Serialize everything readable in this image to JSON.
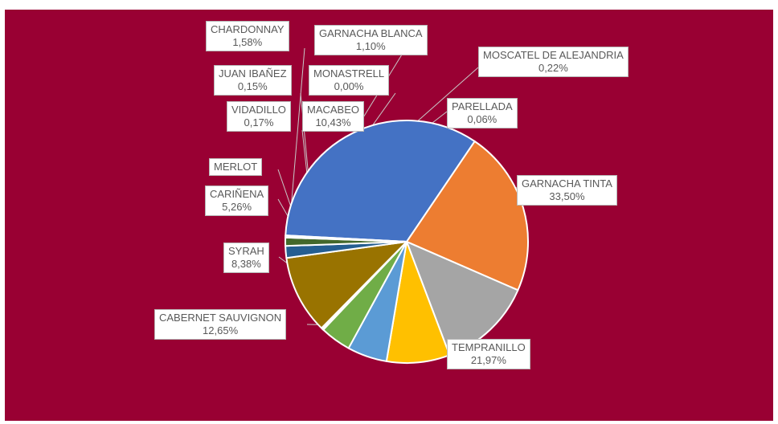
{
  "chart_data": {
    "type": "pie",
    "title": "",
    "slices": [
      {
        "name": "GARNACHA TINTA",
        "value": 33.5,
        "label": "33,50%",
        "color": "#4472c4"
      },
      {
        "name": "TEMPRANILLO",
        "value": 21.97,
        "label": "21,97%",
        "color": "#ed7d31"
      },
      {
        "name": "CABERNET SAUVIGNON",
        "value": 12.65,
        "label": "12,65%",
        "color": "#a5a5a5"
      },
      {
        "name": "SYRAH",
        "value": 8.38,
        "label": "8,38%",
        "color": "#ffc000"
      },
      {
        "name": "CARIÑENA",
        "value": 5.26,
        "label": "5,26%",
        "color": "#5b9bd5"
      },
      {
        "name": "MERLOT",
        "value": 4.1,
        "label": "",
        "color": "#70ad47"
      },
      {
        "name": "VIDADILLO",
        "value": 0.17,
        "label": "0,17%",
        "color": "#264478"
      },
      {
        "name": "JUAN IBAÑEZ",
        "value": 0.15,
        "label": "0,15%",
        "color": "#9e480e"
      },
      {
        "name": "MACABEO",
        "value": 10.43,
        "label": "10,43%",
        "color": "#997300"
      },
      {
        "name": "CHARDONNAY",
        "value": 1.58,
        "label": "1,58%",
        "color": "#255e91"
      },
      {
        "name": "MONASTRELL",
        "value": 0.0,
        "label": "0,00%",
        "color": "#43682b"
      },
      {
        "name": "GARNACHA BLANCA",
        "value": 1.1,
        "label": "1,10%",
        "color": "#43682b"
      },
      {
        "name": "MOSCATEL DE ALEJANDRIA",
        "value": 0.22,
        "label": "0,22%",
        "color": "#698ed0"
      },
      {
        "name": "PARELLADA",
        "value": 0.06,
        "label": "0,06%",
        "color": "#f1975a"
      }
    ],
    "background": "#990033"
  }
}
